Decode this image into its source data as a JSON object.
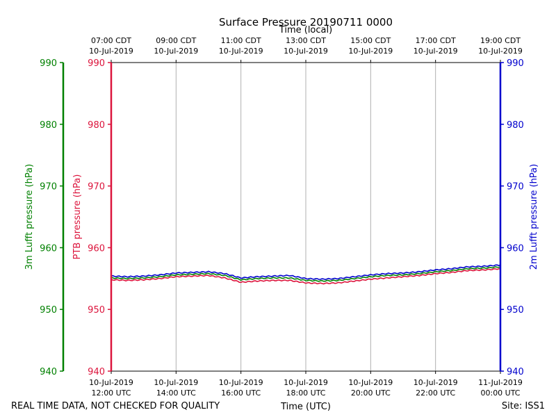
{
  "chart_data": {
    "type": "line",
    "title": "Surface Pressure 20190711 0000",
    "top_axis_label": "Time (local)",
    "bottom_axis_label": "Time (UTC)",
    "footer_left": "REAL TIME DATA, NOT CHECKED FOR QUALITY",
    "footer_right": "Site: ISS1",
    "x_range_hours": [
      0,
      12
    ],
    "ylim": [
      940,
      990
    ],
    "y_ticks": [
      940,
      950,
      960,
      970,
      980,
      990
    ],
    "y_axes": [
      {
        "id": "lufft3m",
        "label": "3m Lufft pressure (hPa)",
        "color": "#008000",
        "side": "left-outer"
      },
      {
        "id": "ptb",
        "label": "PTB pressure (hPa)",
        "color": "#dc143c",
        "side": "left-inner"
      },
      {
        "id": "lufft2m",
        "label": "2m Lufft pressure (hPa)",
        "color": "#0000cd",
        "side": "right"
      }
    ],
    "x_ticks_bottom": [
      {
        "hour": 0,
        "line1": "10-Jul-2019",
        "line2": "12:00 UTC"
      },
      {
        "hour": 2,
        "line1": "10-Jul-2019",
        "line2": "14:00 UTC"
      },
      {
        "hour": 4,
        "line1": "10-Jul-2019",
        "line2": "16:00 UTC"
      },
      {
        "hour": 6,
        "line1": "10-Jul-2019",
        "line2": "18:00 UTC"
      },
      {
        "hour": 8,
        "line1": "10-Jul-2019",
        "line2": "20:00 UTC"
      },
      {
        "hour": 10,
        "line1": "10-Jul-2019",
        "line2": "22:00 UTC"
      },
      {
        "hour": 12,
        "line1": "11-Jul-2019",
        "line2": "00:00 UTC"
      }
    ],
    "x_ticks_top": [
      {
        "hour": 0,
        "line1": "07:00 CDT",
        "line2": "10-Jul-2019"
      },
      {
        "hour": 2,
        "line1": "09:00 CDT",
        "line2": "10-Jul-2019"
      },
      {
        "hour": 4,
        "line1": "11:00 CDT",
        "line2": "10-Jul-2019"
      },
      {
        "hour": 6,
        "line1": "13:00 CDT",
        "line2": "10-Jul-2019"
      },
      {
        "hour": 8,
        "line1": "15:00 CDT",
        "line2": "10-Jul-2019"
      },
      {
        "hour": 10,
        "line1": "17:00 CDT",
        "line2": "10-Jul-2019"
      },
      {
        "hour": 12,
        "line1": "19:00 CDT",
        "line2": "10-Jul-2019"
      }
    ],
    "x": [
      0,
      0.5,
      1,
      1.5,
      2,
      2.5,
      3,
      3.5,
      4,
      4.5,
      5,
      5.5,
      6,
      6.5,
      7,
      7.5,
      8,
      8.5,
      9,
      9.5,
      10,
      10.5,
      11,
      11.5,
      12
    ],
    "series": [
      {
        "name": "2m Lufft pressure",
        "axis": "lufft2m",
        "color": "#0000cd",
        "values": [
          955.4,
          955.3,
          955.4,
          955.6,
          955.9,
          956.0,
          956.1,
          955.8,
          955.1,
          955.3,
          955.4,
          955.5,
          955.0,
          954.9,
          955.0,
          955.3,
          955.6,
          955.8,
          955.9,
          956.1,
          956.4,
          956.6,
          956.9,
          957.0,
          957.2
        ]
      },
      {
        "name": "3m Lufft pressure",
        "axis": "lufft3m",
        "color": "#008000",
        "values": [
          955.1,
          955.0,
          955.1,
          955.3,
          955.6,
          955.7,
          955.8,
          955.5,
          954.8,
          955.0,
          955.1,
          955.1,
          954.7,
          954.6,
          954.7,
          955.0,
          955.3,
          955.5,
          955.6,
          955.8,
          956.1,
          956.3,
          956.6,
          956.7,
          956.9
        ]
      },
      {
        "name": "PTB pressure",
        "axis": "ptb",
        "color": "#dc143c",
        "values": [
          954.8,
          954.7,
          954.8,
          955.0,
          955.3,
          955.4,
          955.5,
          955.1,
          954.4,
          954.6,
          954.7,
          954.7,
          954.3,
          954.2,
          954.3,
          954.6,
          954.9,
          955.1,
          955.3,
          955.5,
          955.8,
          956.0,
          956.3,
          956.4,
          956.6
        ]
      }
    ]
  }
}
